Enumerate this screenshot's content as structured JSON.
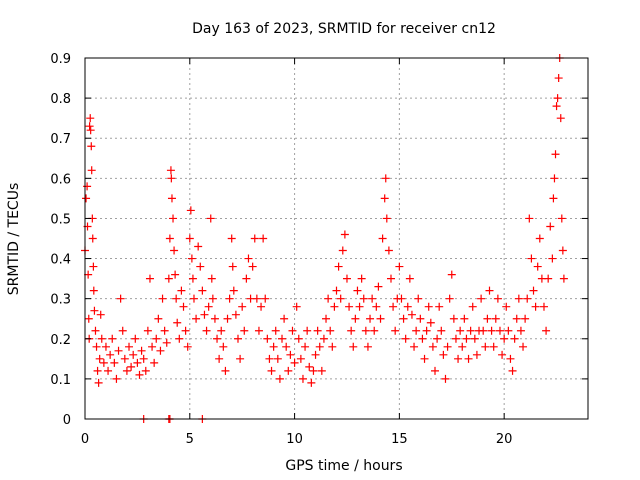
{
  "chart_data": {
    "type": "scatter",
    "title": "Day 163 of 2023, SRMTID for receiver cn12",
    "xlabel": "GPS time / hours",
    "ylabel": "SRMTID / TECUs",
    "xlim": [
      0,
      24
    ],
    "ylim": [
      0,
      0.9
    ],
    "xticks": [
      0,
      5,
      10,
      15,
      20
    ],
    "yticks": [
      0,
      0.1,
      0.2,
      0.3,
      0.4,
      0.5,
      0.6,
      0.7,
      0.8,
      0.9
    ],
    "grid": true,
    "marker": "+",
    "color": "#ff0000",
    "series": [
      {
        "name": "cn12",
        "points": [
          [
            0.0,
            0.42
          ],
          [
            0.05,
            0.55
          ],
          [
            0.1,
            0.58
          ],
          [
            0.12,
            0.48
          ],
          [
            0.15,
            0.36
          ],
          [
            0.18,
            0.25
          ],
          [
            0.2,
            0.2
          ],
          [
            0.22,
            0.73
          ],
          [
            0.25,
            0.75
          ],
          [
            0.27,
            0.72
          ],
          [
            0.3,
            0.68
          ],
          [
            0.32,
            0.62
          ],
          [
            0.35,
            0.5
          ],
          [
            0.37,
            0.45
          ],
          [
            0.4,
            0.38
          ],
          [
            0.42,
            0.32
          ],
          [
            0.45,
            0.27
          ],
          [
            0.5,
            0.22
          ],
          [
            0.55,
            0.18
          ],
          [
            0.6,
            0.12
          ],
          [
            0.65,
            0.09
          ],
          [
            0.7,
            0.15
          ],
          [
            0.75,
            0.26
          ],
          [
            0.8,
            0.2
          ],
          [
            0.9,
            0.14
          ],
          [
            1.0,
            0.18
          ],
          [
            1.1,
            0.12
          ],
          [
            1.2,
            0.16
          ],
          [
            1.3,
            0.2
          ],
          [
            1.4,
            0.14
          ],
          [
            1.5,
            0.1
          ],
          [
            1.6,
            0.17
          ],
          [
            1.7,
            0.3
          ],
          [
            1.8,
            0.22
          ],
          [
            1.9,
            0.15
          ],
          [
            2.0,
            0.12
          ],
          [
            2.1,
            0.18
          ],
          [
            2.2,
            0.13
          ],
          [
            2.3,
            0.16
          ],
          [
            2.4,
            0.2
          ],
          [
            2.5,
            0.14
          ],
          [
            2.6,
            0.11
          ],
          [
            2.7,
            0.17
          ],
          [
            2.8,
            0.15
          ],
          [
            2.9,
            0.12
          ],
          [
            3.0,
            0.22
          ],
          [
            3.1,
            0.35
          ],
          [
            3.2,
            0.18
          ],
          [
            3.3,
            0.14
          ],
          [
            3.4,
            0.2
          ],
          [
            3.5,
            0.25
          ],
          [
            3.6,
            0.17
          ],
          [
            3.7,
            0.3
          ],
          [
            3.8,
            0.22
          ],
          [
            3.9,
            0.19
          ],
          [
            4.0,
            0.35
          ],
          [
            4.05,
            0.45
          ],
          [
            4.1,
            0.62
          ],
          [
            4.12,
            0.6
          ],
          [
            4.15,
            0.55
          ],
          [
            4.2,
            0.5
          ],
          [
            4.25,
            0.42
          ],
          [
            4.3,
            0.36
          ],
          [
            4.35,
            0.3
          ],
          [
            4.4,
            0.24
          ],
          [
            4.5,
            0.2
          ],
          [
            4.6,
            0.32
          ],
          [
            4.7,
            0.28
          ],
          [
            4.8,
            0.22
          ],
          [
            4.9,
            0.18
          ],
          [
            5.0,
            0.45
          ],
          [
            5.05,
            0.52
          ],
          [
            5.1,
            0.4
          ],
          [
            5.15,
            0.35
          ],
          [
            5.2,
            0.3
          ],
          [
            5.3,
            0.25
          ],
          [
            5.4,
            0.43
          ],
          [
            5.5,
            0.38
          ],
          [
            5.6,
            0.32
          ],
          [
            5.7,
            0.26
          ],
          [
            5.8,
            0.22
          ],
          [
            5.9,
            0.28
          ],
          [
            6.0,
            0.5
          ],
          [
            6.05,
            0.35
          ],
          [
            6.1,
            0.3
          ],
          [
            6.2,
            0.25
          ],
          [
            6.3,
            0.2
          ],
          [
            6.4,
            0.15
          ],
          [
            6.5,
            0.22
          ],
          [
            6.6,
            0.18
          ],
          [
            6.7,
            0.12
          ],
          [
            6.8,
            0.25
          ],
          [
            6.9,
            0.3
          ],
          [
            7.0,
            0.45
          ],
          [
            7.05,
            0.38
          ],
          [
            7.1,
            0.32
          ],
          [
            7.2,
            0.26
          ],
          [
            7.3,
            0.2
          ],
          [
            7.4,
            0.15
          ],
          [
            7.5,
            0.28
          ],
          [
            7.6,
            0.22
          ],
          [
            7.7,
            0.35
          ],
          [
            7.8,
            0.4
          ],
          [
            7.9,
            0.3
          ],
          [
            8.0,
            0.38
          ],
          [
            8.1,
            0.45
          ],
          [
            8.2,
            0.3
          ],
          [
            8.3,
            0.22
          ],
          [
            8.4,
            0.28
          ],
          [
            8.5,
            0.45
          ],
          [
            8.6,
            0.3
          ],
          [
            8.7,
            0.2
          ],
          [
            8.8,
            0.15
          ],
          [
            8.9,
            0.12
          ],
          [
            9.0,
            0.18
          ],
          [
            9.1,
            0.22
          ],
          [
            9.2,
            0.15
          ],
          [
            9.3,
            0.1
          ],
          [
            9.4,
            0.2
          ],
          [
            9.5,
            0.25
          ],
          [
            9.6,
            0.18
          ],
          [
            9.7,
            0.12
          ],
          [
            9.8,
            0.16
          ],
          [
            9.9,
            0.22
          ],
          [
            10.0,
            0.14
          ],
          [
            10.1,
            0.28
          ],
          [
            10.2,
            0.2
          ],
          [
            10.3,
            0.15
          ],
          [
            10.4,
            0.1
          ],
          [
            10.5,
            0.18
          ],
          [
            10.6,
            0.22
          ],
          [
            10.7,
            0.13
          ],
          [
            10.8,
            0.09
          ],
          [
            10.9,
            0.12
          ],
          [
            11.0,
            0.16
          ],
          [
            11.1,
            0.22
          ],
          [
            11.2,
            0.18
          ],
          [
            11.3,
            0.12
          ],
          [
            11.4,
            0.2
          ],
          [
            11.5,
            0.25
          ],
          [
            11.6,
            0.3
          ],
          [
            11.7,
            0.22
          ],
          [
            11.8,
            0.18
          ],
          [
            11.9,
            0.28
          ],
          [
            12.0,
            0.32
          ],
          [
            12.1,
            0.38
          ],
          [
            12.2,
            0.3
          ],
          [
            12.3,
            0.42
          ],
          [
            12.4,
            0.46
          ],
          [
            12.5,
            0.35
          ],
          [
            12.6,
            0.28
          ],
          [
            12.7,
            0.22
          ],
          [
            12.8,
            0.18
          ],
          [
            12.9,
            0.25
          ],
          [
            13.0,
            0.32
          ],
          [
            13.1,
            0.28
          ],
          [
            13.2,
            0.35
          ],
          [
            13.3,
            0.3
          ],
          [
            13.4,
            0.22
          ],
          [
            13.5,
            0.18
          ],
          [
            13.6,
            0.25
          ],
          [
            13.7,
            0.3
          ],
          [
            13.8,
            0.22
          ],
          [
            13.9,
            0.28
          ],
          [
            14.0,
            0.33
          ],
          [
            14.1,
            0.25
          ],
          [
            14.2,
            0.45
          ],
          [
            14.3,
            0.55
          ],
          [
            14.35,
            0.6
          ],
          [
            14.4,
            0.5
          ],
          [
            14.5,
            0.42
          ],
          [
            14.6,
            0.35
          ],
          [
            14.7,
            0.28
          ],
          [
            14.8,
            0.22
          ],
          [
            14.9,
            0.3
          ],
          [
            15.0,
            0.38
          ],
          [
            15.1,
            0.3
          ],
          [
            15.2,
            0.25
          ],
          [
            15.3,
            0.2
          ],
          [
            15.4,
            0.28
          ],
          [
            15.5,
            0.35
          ],
          [
            15.6,
            0.26
          ],
          [
            15.7,
            0.18
          ],
          [
            15.8,
            0.22
          ],
          [
            15.9,
            0.3
          ],
          [
            16.0,
            0.25
          ],
          [
            16.1,
            0.2
          ],
          [
            16.2,
            0.15
          ],
          [
            16.3,
            0.22
          ],
          [
            16.4,
            0.28
          ],
          [
            16.5,
            0.24
          ],
          [
            16.6,
            0.18
          ],
          [
            16.7,
            0.12
          ],
          [
            16.8,
            0.2
          ],
          [
            16.9,
            0.28
          ],
          [
            17.0,
            0.22
          ],
          [
            17.1,
            0.16
          ],
          [
            17.2,
            0.1
          ],
          [
            17.3,
            0.18
          ],
          [
            17.4,
            0.3
          ],
          [
            17.5,
            0.36
          ],
          [
            17.6,
            0.25
          ],
          [
            17.7,
            0.2
          ],
          [
            17.8,
            0.15
          ],
          [
            17.9,
            0.22
          ],
          [
            18.0,
            0.18
          ],
          [
            18.1,
            0.25
          ],
          [
            18.2,
            0.2
          ],
          [
            18.3,
            0.15
          ],
          [
            18.4,
            0.22
          ],
          [
            18.5,
            0.28
          ],
          [
            18.6,
            0.2
          ],
          [
            18.7,
            0.16
          ],
          [
            18.8,
            0.22
          ],
          [
            18.9,
            0.3
          ],
          [
            19.0,
            0.22
          ],
          [
            19.1,
            0.18
          ],
          [
            19.2,
            0.25
          ],
          [
            19.3,
            0.32
          ],
          [
            19.4,
            0.22
          ],
          [
            19.5,
            0.18
          ],
          [
            19.6,
            0.25
          ],
          [
            19.7,
            0.3
          ],
          [
            19.8,
            0.22
          ],
          [
            19.9,
            0.16
          ],
          [
            20.0,
            0.2
          ],
          [
            20.1,
            0.28
          ],
          [
            20.2,
            0.22
          ],
          [
            20.3,
            0.15
          ],
          [
            20.4,
            0.12
          ],
          [
            20.5,
            0.2
          ],
          [
            20.6,
            0.25
          ],
          [
            20.7,
            0.3
          ],
          [
            20.8,
            0.22
          ],
          [
            20.9,
            0.18
          ],
          [
            21.0,
            0.25
          ],
          [
            21.1,
            0.3
          ],
          [
            21.2,
            0.5
          ],
          [
            21.3,
            0.4
          ],
          [
            21.4,
            0.32
          ],
          [
            21.5,
            0.28
          ],
          [
            21.6,
            0.38
          ],
          [
            21.7,
            0.45
          ],
          [
            21.8,
            0.35
          ],
          [
            21.9,
            0.28
          ],
          [
            22.0,
            0.22
          ],
          [
            22.1,
            0.35
          ],
          [
            22.2,
            0.48
          ],
          [
            22.3,
            0.4
          ],
          [
            22.35,
            0.55
          ],
          [
            22.4,
            0.6
          ],
          [
            22.45,
            0.66
          ],
          [
            22.5,
            0.78
          ],
          [
            22.55,
            0.8
          ],
          [
            22.6,
            0.85
          ],
          [
            22.65,
            0.9
          ],
          [
            22.7,
            0.75
          ],
          [
            22.75,
            0.5
          ],
          [
            22.8,
            0.42
          ],
          [
            22.85,
            0.35
          ],
          [
            2.8,
            0.0
          ],
          [
            4.0,
            0.0
          ],
          [
            4.05,
            0.0
          ],
          [
            5.6,
            0.0
          ]
        ]
      }
    ]
  }
}
